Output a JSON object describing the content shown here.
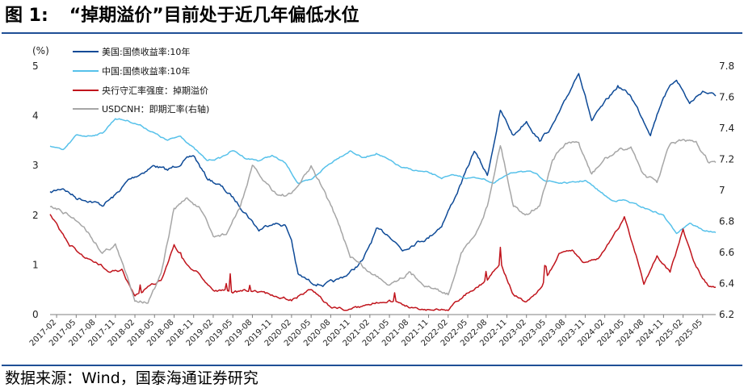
{
  "header": {
    "figure_label": "图 1:",
    "title": "“掉期溢价”目前处于近几年偏低水位"
  },
  "footer": {
    "source": "数据来源：Wind，国泰海通证券研究"
  },
  "colors": {
    "us10y": "#0e4a97",
    "cn10y": "#56c1ea",
    "swap": "#c0141c",
    "fx": "#a6a6a6",
    "rule": "#1f4f96"
  },
  "chart_data": {
    "type": "line",
    "left_axis": {
      "unit_label": "(%)",
      "min": 0,
      "max": 5,
      "ticks": [
        "0",
        "1",
        "2",
        "3",
        "4",
        "5"
      ]
    },
    "right_axis": {
      "min": 6.2,
      "max": 7.8,
      "ticks": [
        "6.2",
        "6.4",
        "6.6",
        "6.8",
        "7",
        "7.2",
        "7.4",
        "7.6",
        "7.8"
      ]
    },
    "x_ticks": [
      "2017-02",
      "2017-05",
      "2017-08",
      "2017-11",
      "2018-02",
      "2018-05",
      "2018-08",
      "2018-11",
      "2019-02",
      "2019-05",
      "2019-08",
      "2019-11",
      "2020-02",
      "2020-05",
      "2020-08",
      "2020-11",
      "2021-02",
      "2021-05",
      "2021-08",
      "2021-11",
      "2022-02",
      "2022-05",
      "2022-08",
      "2022-11",
      "2023-02",
      "2023-05",
      "2023-08",
      "2023-11",
      "2024-02",
      "2024-05",
      "2024-08",
      "2024-11",
      "2025-02",
      "2025-05"
    ],
    "x_range": [
      "2017-01",
      "2025-07"
    ],
    "legend": [
      "美国:国债收益率:10年",
      "中国:国债收益率:10年",
      "央行守汇率强度：掉期溢价",
      "USDCNH：即期汇率(右轴)"
    ],
    "legend_position": "top-left",
    "series": [
      {
        "name": "美国:国债收益率:10年",
        "axis": "left",
        "x": [
          "2017-01",
          "2017-03",
          "2017-05",
          "2017-07",
          "2017-09",
          "2017-11",
          "2018-01",
          "2018-03",
          "2018-05",
          "2018-07",
          "2018-09",
          "2018-11",
          "2019-01",
          "2019-03",
          "2019-05",
          "2019-07",
          "2019-09",
          "2019-11",
          "2020-01",
          "2020-02",
          "2020-03",
          "2020-05",
          "2020-07",
          "2020-09",
          "2020-11",
          "2021-01",
          "2021-03",
          "2021-05",
          "2021-07",
          "2021-09",
          "2021-11",
          "2022-01",
          "2022-03",
          "2022-05",
          "2022-06",
          "2022-08",
          "2022-10",
          "2022-12",
          "2023-02",
          "2023-04",
          "2023-06",
          "2023-08",
          "2023-10",
          "2023-12",
          "2024-02",
          "2024-04",
          "2024-06",
          "2024-08",
          "2024-09",
          "2024-11",
          "2025-01",
          "2025-03",
          "2025-05",
          "2025-07"
        ],
        "values": [
          2.45,
          2.55,
          2.35,
          2.3,
          2.2,
          2.4,
          2.7,
          2.85,
          3.0,
          2.9,
          3.05,
          3.2,
          2.75,
          2.6,
          2.35,
          2.05,
          1.7,
          1.85,
          1.8,
          1.5,
          0.8,
          0.65,
          0.6,
          0.68,
          0.85,
          1.1,
          1.7,
          1.6,
          1.3,
          1.45,
          1.55,
          1.8,
          2.35,
          2.95,
          3.3,
          2.8,
          4.1,
          3.6,
          3.9,
          3.5,
          3.8,
          4.3,
          4.9,
          3.9,
          4.25,
          4.6,
          4.4,
          3.9,
          3.65,
          4.4,
          4.75,
          4.25,
          4.5,
          4.4
        ]
      },
      {
        "name": "中国:国债收益率:10年",
        "axis": "left",
        "x": [
          "2017-01",
          "2017-03",
          "2017-05",
          "2017-07",
          "2017-09",
          "2017-11",
          "2018-01",
          "2018-03",
          "2018-05",
          "2018-07",
          "2018-09",
          "2018-11",
          "2019-01",
          "2019-03",
          "2019-05",
          "2019-07",
          "2019-09",
          "2019-11",
          "2020-01",
          "2020-03",
          "2020-05",
          "2020-07",
          "2020-09",
          "2020-11",
          "2021-01",
          "2021-03",
          "2021-05",
          "2021-07",
          "2021-09",
          "2021-11",
          "2022-01",
          "2022-03",
          "2022-05",
          "2022-07",
          "2022-09",
          "2022-11",
          "2023-01",
          "2023-03",
          "2023-05",
          "2023-07",
          "2023-09",
          "2023-11",
          "2024-01",
          "2024-03",
          "2024-05",
          "2024-07",
          "2024-09",
          "2024-11",
          "2024-12",
          "2025-01",
          "2025-03",
          "2025-05",
          "2025-07"
        ],
        "values": [
          3.4,
          3.3,
          3.6,
          3.6,
          3.65,
          3.95,
          3.9,
          3.8,
          3.65,
          3.5,
          3.6,
          3.35,
          3.1,
          3.15,
          3.3,
          3.15,
          3.1,
          3.2,
          3.05,
          2.65,
          2.7,
          2.95,
          3.15,
          3.3,
          3.15,
          3.25,
          3.1,
          2.95,
          2.9,
          2.85,
          2.75,
          2.8,
          2.75,
          2.75,
          2.65,
          2.8,
          2.9,
          2.85,
          2.7,
          2.65,
          2.65,
          2.7,
          2.5,
          2.3,
          2.3,
          2.2,
          2.1,
          2.0,
          1.8,
          1.65,
          1.85,
          1.7,
          1.65
        ]
      },
      {
        "name": "央行守汇率强度：掉期溢价",
        "axis": "left",
        "x": [
          "2017-01",
          "2017-02",
          "2017-04",
          "2017-07",
          "2017-10",
          "2017-12",
          "2018-02",
          "2018-04",
          "2018-06",
          "2018-08",
          "2018-10",
          "2018-12",
          "2019-02",
          "2019-05",
          "2019-08",
          "2019-11",
          "2020-02",
          "2020-05",
          "2020-08",
          "2020-11",
          "2021-02",
          "2021-05",
          "2021-08",
          "2021-11",
          "2022-02",
          "2022-05",
          "2022-08",
          "2022-10",
          "2022-12",
          "2023-02",
          "2023-04",
          "2023-07",
          "2023-09",
          "2023-11",
          "2024-01",
          "2024-03",
          "2024-05",
          "2024-07",
          "2024-08",
          "2024-10",
          "2024-12",
          "2025-02",
          "2025-04",
          "2025-06",
          "2025-07"
        ],
        "values": [
          2.0,
          1.8,
          1.4,
          1.1,
          0.9,
          0.9,
          0.35,
          0.55,
          0.7,
          1.4,
          1.0,
          0.8,
          0.5,
          0.45,
          0.5,
          0.4,
          0.3,
          0.5,
          0.15,
          0.1,
          0.2,
          0.3,
          0.15,
          0.1,
          0.1,
          0.45,
          0.7,
          1.05,
          0.4,
          0.25,
          0.5,
          1.2,
          1.3,
          1.05,
          1.15,
          1.5,
          1.95,
          1.1,
          0.6,
          1.2,
          0.85,
          1.7,
          0.95,
          0.55,
          0.55
        ]
      },
      {
        "name": "USDCNH：即期汇率(右轴)",
        "axis": "right",
        "x": [
          "2017-01",
          "2017-03",
          "2017-06",
          "2017-09",
          "2017-11",
          "2018-02",
          "2018-04",
          "2018-06",
          "2018-08",
          "2018-10",
          "2018-12",
          "2019-02",
          "2019-04",
          "2019-06",
          "2019-08",
          "2019-10",
          "2019-12",
          "2020-02",
          "2020-05",
          "2020-07",
          "2020-09",
          "2020-11",
          "2021-02",
          "2021-05",
          "2021-08",
          "2021-11",
          "2022-02",
          "2022-04",
          "2022-06",
          "2022-08",
          "2022-10",
          "2022-12",
          "2023-02",
          "2023-04",
          "2023-06",
          "2023-08",
          "2023-10",
          "2023-12",
          "2024-02",
          "2024-04",
          "2024-06",
          "2024-08",
          "2024-10",
          "2024-12",
          "2025-02",
          "2025-04",
          "2025-06",
          "2025-07"
        ],
        "values": [
          6.9,
          6.86,
          6.78,
          6.6,
          6.65,
          6.3,
          6.28,
          6.45,
          6.88,
          6.95,
          6.88,
          6.7,
          6.72,
          6.88,
          7.15,
          7.05,
          6.97,
          6.97,
          7.15,
          7.0,
          6.8,
          6.58,
          6.47,
          6.4,
          6.47,
          6.38,
          6.33,
          6.6,
          6.7,
          6.9,
          7.3,
          6.9,
          6.85,
          6.9,
          7.2,
          7.3,
          7.3,
          7.1,
          7.2,
          7.25,
          7.28,
          7.1,
          7.05,
          7.3,
          7.32,
          7.3,
          7.18,
          7.18
        ]
      }
    ]
  }
}
